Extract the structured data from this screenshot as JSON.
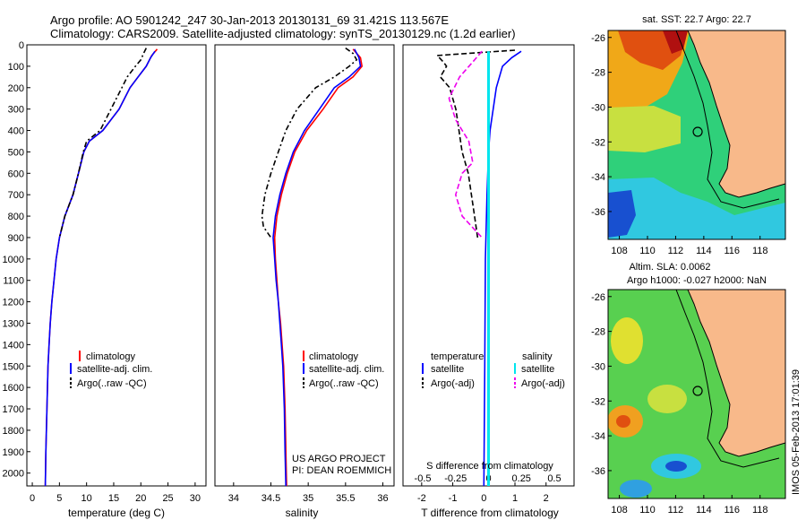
{
  "header": {
    "title_line1": "Argo profile: AO 5901242_247 30-Jan-2013 20130131_69 31.421S 113.567E",
    "title_line2": "Climatology: CARS2009. Satellite-adjusted climatology: synTS_20130129.nc (1.2d earlier)"
  },
  "depth_ticks": [
    0,
    100,
    200,
    300,
    400,
    500,
    600,
    700,
    800,
    900,
    1000,
    1100,
    1200,
    1300,
    1400,
    1500,
    1600,
    1700,
    1800,
    1900,
    2000
  ],
  "colors": {
    "climatology": "#ff0000",
    "satellite": "#0000ff",
    "argo": "#000000",
    "salinity_sat": "#00e5ee",
    "salinity_argo": "#ee00ee",
    "land": "#f8b98a",
    "coast": "#000000"
  },
  "chart_data": [
    {
      "type": "line",
      "id": "temperature",
      "xlabel": "temperature (deg C)",
      "xlim": [
        -1,
        32
      ],
      "ylim": [
        2060,
        0
      ],
      "xticks": [
        0,
        5,
        10,
        15,
        20,
        25,
        30
      ],
      "legend": [
        "climatology",
        "satellite-adj. clim.",
        "Argo(..raw -QC)"
      ],
      "series": [
        {
          "name": "climatology",
          "points": [
            [
              23,
              20
            ],
            [
              22,
              50
            ],
            [
              21,
              100
            ],
            [
              19.5,
              150
            ],
            [
              18,
              200
            ],
            [
              16,
              300
            ],
            [
              13,
              400
            ],
            [
              10.5,
              450
            ],
            [
              9.5,
              500
            ],
            [
              8.5,
              600
            ],
            [
              7.5,
              700
            ],
            [
              6,
              800
            ],
            [
              5,
              900
            ],
            [
              4.4,
              1000
            ],
            [
              4,
              1100
            ],
            [
              3.6,
              1200
            ],
            [
              3.3,
              1300
            ],
            [
              3.1,
              1400
            ],
            [
              2.9,
              1500
            ],
            [
              2.7,
              1700
            ],
            [
              2.5,
              1900
            ],
            [
              2.4,
              2060
            ]
          ]
        },
        {
          "name": "satellite-adj. clim.",
          "points": [
            [
              22.6,
              30
            ],
            [
              21.8,
              60
            ],
            [
              21,
              100
            ],
            [
              19.5,
              150
            ],
            [
              18,
              200
            ],
            [
              16,
              300
            ],
            [
              13,
              400
            ],
            [
              10.5,
              450
            ],
            [
              9.5,
              500
            ],
            [
              8.5,
              600
            ],
            [
              7.5,
              700
            ],
            [
              6,
              800
            ],
            [
              5,
              900
            ],
            [
              4.4,
              1000
            ],
            [
              4,
              1100
            ],
            [
              3.6,
              1200
            ],
            [
              3.3,
              1300
            ],
            [
              3.1,
              1400
            ],
            [
              2.9,
              1500
            ],
            [
              2.7,
              1700
            ],
            [
              2.5,
              1900
            ],
            [
              2.4,
              2060
            ]
          ]
        },
        {
          "name": "Argo(..raw -QC)",
          "points": [
            [
              21,
              15
            ],
            [
              20.5,
              40
            ],
            [
              20,
              70
            ],
            [
              19,
              100
            ],
            [
              17.5,
              150
            ],
            [
              16.5,
              200
            ],
            [
              14.5,
              300
            ],
            [
              12.5,
              400
            ],
            [
              10,
              450
            ],
            [
              9.4,
              500
            ],
            [
              8.5,
              600
            ],
            [
              7.5,
              700
            ],
            [
              6,
              800
            ],
            [
              5,
              900
            ]
          ]
        }
      ]
    },
    {
      "type": "line",
      "id": "salinity",
      "xlabel": "salinity",
      "xlim": [
        33.75,
        36.15
      ],
      "ylim": [
        2060,
        0
      ],
      "xticks": [
        34,
        34.5,
        35,
        35.5,
        36
      ],
      "legend": [
        "climatology",
        "satellite-adj. clim.",
        "Argo(..raw -QC)"
      ],
      "annotation_line1": "US ARGO PROJECT",
      "annotation_line2": "PI: DEAN ROEMMICH",
      "series": [
        {
          "name": "climatology",
          "points": [
            [
              35.6,
              20
            ],
            [
              35.7,
              60
            ],
            [
              35.72,
              100
            ],
            [
              35.6,
              150
            ],
            [
              35.4,
              200
            ],
            [
              35.2,
              300
            ],
            [
              34.98,
              400
            ],
            [
              34.82,
              500
            ],
            [
              34.72,
              600
            ],
            [
              34.64,
              700
            ],
            [
              34.58,
              800
            ],
            [
              34.55,
              900
            ],
            [
              34.56,
              1000
            ],
            [
              34.58,
              1100
            ],
            [
              34.6,
              1200
            ],
            [
              34.63,
              1300
            ],
            [
              34.65,
              1400
            ],
            [
              34.67,
              1500
            ],
            [
              34.69,
              1700
            ],
            [
              34.7,
              1900
            ],
            [
              34.71,
              2060
            ]
          ]
        },
        {
          "name": "satellite-adj. clim.",
          "points": [
            [
              35.62,
              20
            ],
            [
              35.68,
              60
            ],
            [
              35.7,
              100
            ],
            [
              35.55,
              150
            ],
            [
              35.35,
              200
            ],
            [
              35.15,
              300
            ],
            [
              34.95,
              400
            ],
            [
              34.8,
              500
            ],
            [
              34.7,
              600
            ],
            [
              34.62,
              700
            ],
            [
              34.56,
              800
            ],
            [
              34.53,
              900
            ],
            [
              34.55,
              1000
            ],
            [
              34.57,
              1100
            ],
            [
              34.6,
              1200
            ],
            [
              34.62,
              1300
            ],
            [
              34.64,
              1400
            ],
            [
              34.66,
              1500
            ],
            [
              34.68,
              1700
            ],
            [
              34.69,
              1900
            ],
            [
              34.7,
              2060
            ]
          ]
        },
        {
          "name": "Argo(..raw -QC)",
          "points": [
            [
              35.5,
              15
            ],
            [
              35.6,
              40
            ],
            [
              35.65,
              70
            ],
            [
              35.55,
              100
            ],
            [
              35.35,
              150
            ],
            [
              35.1,
              200
            ],
            [
              34.85,
              300
            ],
            [
              34.7,
              400
            ],
            [
              34.6,
              500
            ],
            [
              34.5,
              600
            ],
            [
              34.42,
              700
            ],
            [
              34.38,
              800
            ],
            [
              34.4,
              850
            ],
            [
              34.5,
              900
            ]
          ]
        }
      ]
    },
    {
      "type": "line",
      "id": "difference",
      "xlabel": "T difference from climatology",
      "x2label": "S difference from climatology",
      "xlim": [
        -2.6,
        2.9
      ],
      "ylim": [
        2060,
        0
      ],
      "xticks": [
        -2,
        -1,
        0,
        1,
        2
      ],
      "x2ticks": [
        -0.5,
        -0.25,
        0,
        0.25,
        0.5
      ],
      "legend_temperature": "temperature",
      "legend_salinity": "salinity",
      "legend_entries": [
        "satellite",
        "Argo(-adj)",
        "satellite",
        "Argo(-adj)"
      ],
      "series": [
        {
          "name": "T satellite",
          "points": [
            [
              1.2,
              30
            ],
            [
              0.9,
              60
            ],
            [
              0.6,
              100
            ],
            [
              0.4,
              200
            ],
            [
              0.3,
              300
            ],
            [
              0.2,
              400
            ],
            [
              0.15,
              500
            ],
            [
              0.1,
              700
            ],
            [
              0.05,
              1000
            ],
            [
              0.03,
              1500
            ],
            [
              0,
              2060
            ]
          ]
        },
        {
          "name": "T Argo(-adj)",
          "points": [
            [
              1,
              25
            ],
            [
              -1.5,
              50
            ],
            [
              -1.3,
              80
            ],
            [
              -1.2,
              100
            ],
            [
              -1.4,
              150
            ],
            [
              -1.1,
              200
            ],
            [
              -0.9,
              300
            ],
            [
              -0.8,
              400
            ],
            [
              -0.7,
              500
            ],
            [
              -0.5,
              600
            ],
            [
              -0.4,
              700
            ],
            [
              -0.3,
              800
            ],
            [
              -0.2,
              900
            ]
          ]
        },
        {
          "name": "S satellite",
          "points": [
            [
              0,
              30
            ],
            [
              0,
              200
            ],
            [
              0,
              500
            ],
            [
              0,
              1000
            ],
            [
              0,
              2060
            ]
          ]
        },
        {
          "name": "S Argo(-adj)",
          "points": [
            [
              -0.05,
              30
            ],
            [
              -0.12,
              80
            ],
            [
              -0.22,
              150
            ],
            [
              -0.3,
              250
            ],
            [
              -0.25,
              350
            ],
            [
              -0.15,
              450
            ],
            [
              -0.12,
              550
            ],
            [
              -0.2,
              600
            ],
            [
              -0.25,
              700
            ],
            [
              -0.2,
              800
            ],
            [
              -0.05,
              900
            ]
          ]
        }
      ]
    }
  ],
  "maps": {
    "top_title": "sat. SST: 22.7  Argo: 22.7",
    "bottom_title_line1": "Altim. SLA: 0.0062",
    "bottom_title_line2": "Argo h1000: -0.027 h2000: NaN",
    "lon_ticks": [
      108,
      110,
      112,
      114,
      116,
      118
    ],
    "lat_ticks": [
      -26,
      -28,
      -30,
      -32,
      -34,
      -36
    ],
    "lon_range": [
      107.2,
      119.8
    ],
    "lat_range": [
      -37.6,
      -25.6
    ],
    "argo_position": {
      "lon": 113.567,
      "lat": -31.421
    },
    "side_label": "IMOS 05-Feb-2013 17:01:39"
  }
}
